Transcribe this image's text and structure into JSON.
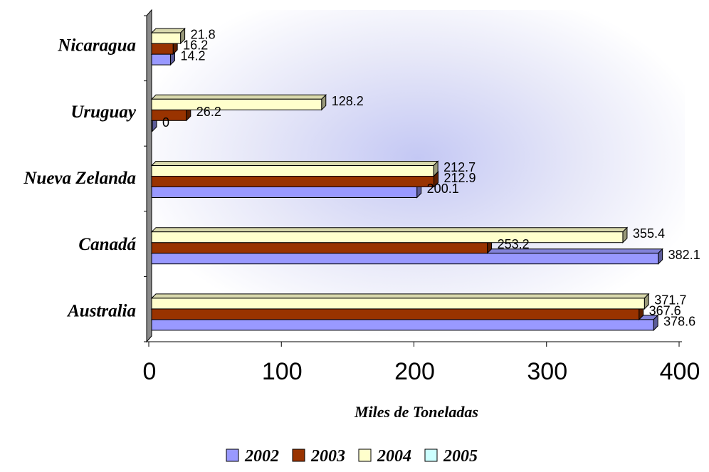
{
  "chart_data": {
    "type": "bar",
    "orientation": "horizontal",
    "three_d": true,
    "categories": [
      "Nicaragua",
      "Uruguay",
      "Nueva Zelanda",
      "Canadá",
      "Australia"
    ],
    "series": [
      {
        "name": "2002",
        "color": "#9999ff",
        "values": [
          14.2,
          0,
          200.1,
          382.1,
          378.6
        ]
      },
      {
        "name": "2003",
        "color": "#993300",
        "values": [
          16.2,
          26.2,
          212.9,
          253.2,
          367.6
        ]
      },
      {
        "name": "2004",
        "color": "#ffffcc",
        "values": [
          21.8,
          128.2,
          212.7,
          355.4,
          371.7
        ]
      },
      {
        "name": "2005",
        "color": "#ccffff",
        "values": [
          null,
          null,
          null,
          null,
          null
        ]
      }
    ],
    "data_labels": [
      [
        "14.2",
        "16.2",
        "21.8"
      ],
      [
        "0",
        "26.2",
        "128.2"
      ],
      [
        "200.1",
        "212.9",
        "212.7"
      ],
      [
        "382.1",
        "253.2",
        "355.4"
      ],
      [
        "378.6",
        "367.6",
        "371.7"
      ]
    ],
    "xlim": [
      0,
      400
    ],
    "xticks": [
      "0",
      "100",
      "200",
      "300",
      "400"
    ],
    "xlabel": "Miles de Toneladas",
    "ylabel": "",
    "title": "",
    "legend_position": "bottom",
    "grid": false
  }
}
